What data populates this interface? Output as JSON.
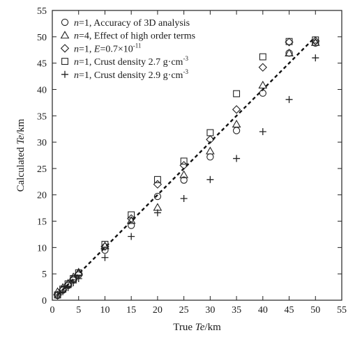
{
  "chart_data": {
    "type": "scatter",
    "xlabel": {
      "prefix": "True ",
      "var": "Te",
      "suffix": "/km"
    },
    "ylabel": {
      "prefix": "Calculated ",
      "var": "Te",
      "suffix": "/km"
    },
    "xlim": [
      0,
      55
    ],
    "ylim": [
      0,
      55
    ],
    "xticks": [
      "0",
      "5",
      "10",
      "15",
      "20",
      "25",
      "30",
      "35",
      "40",
      "45",
      "50",
      "55"
    ],
    "yticks": [
      "0",
      "5",
      "10",
      "15",
      "20",
      "25",
      "30",
      "35",
      "40",
      "45",
      "50",
      "55"
    ],
    "reference_line": {
      "style": "dashed",
      "x": [
        1,
        50
      ],
      "y": [
        1,
        50
      ]
    },
    "legend_position": "top-left",
    "series": [
      {
        "marker": "circle",
        "legend": [
          {
            "text": "n",
            "italic": true
          },
          {
            "text": "=1, Accuracy of 3D analysis"
          }
        ],
        "x": [
          1,
          2,
          3,
          4,
          5,
          10,
          15,
          20,
          25,
          30,
          35,
          40,
          45,
          50
        ],
        "y": [
          0.9,
          1.9,
          2.8,
          3.8,
          4.8,
          9.5,
          14.2,
          19.7,
          22.8,
          27.2,
          32.2,
          39.3,
          46.9,
          48.8
        ]
      },
      {
        "marker": "triangle",
        "legend": [
          {
            "text": "n",
            "italic": true
          },
          {
            "text": "=4, Effect of high order terms"
          }
        ],
        "x": [
          1,
          2,
          3,
          4,
          5,
          10,
          15,
          20,
          25,
          30,
          35,
          40,
          45,
          50
        ],
        "y": [
          1.6,
          2.4,
          3.2,
          4.4,
          5.3,
          10.3,
          15.1,
          17.6,
          23.8,
          28.3,
          33.4,
          40.8,
          46.9,
          48.9
        ]
      },
      {
        "marker": "diamond",
        "legend": [
          {
            "text": "n",
            "italic": true
          },
          {
            "text": "=1, "
          },
          {
            "text": "E",
            "italic": true
          },
          {
            "text": "=0.7×10"
          },
          {
            "text": "-11",
            "sup": true
          }
        ],
        "x": [
          1,
          2,
          3,
          4,
          5,
          10,
          15,
          20,
          25,
          30,
          35,
          40,
          45,
          50
        ],
        "y": [
          1.0,
          2.0,
          3.0,
          4.0,
          5.0,
          10.2,
          15.5,
          22.0,
          25.6,
          30.5,
          36.2,
          44.2,
          49.0,
          49.2
        ]
      },
      {
        "marker": "square",
        "legend": [
          {
            "text": "n",
            "italic": true
          },
          {
            "text": "=1, Crust density 2.7 g·cm"
          },
          {
            "text": "-3",
            "sup": true
          }
        ],
        "x": [
          1,
          2,
          3,
          4,
          5,
          10,
          15,
          20,
          25,
          30,
          35,
          40,
          45,
          50
        ],
        "y": [
          1.0,
          2.1,
          3.1,
          4.1,
          5.2,
          10.6,
          16.2,
          22.9,
          26.4,
          31.8,
          39.2,
          46.2,
          49.1,
          49.4
        ]
      },
      {
        "marker": "plus",
        "legend": [
          {
            "text": "n",
            "italic": true
          },
          {
            "text": "=1, Crust density 2.9 g·cm"
          },
          {
            "text": "-3",
            "sup": true
          }
        ],
        "x": [
          1,
          2,
          3,
          4,
          5,
          10,
          15,
          20,
          25,
          30,
          35,
          40,
          45,
          50
        ],
        "y": [
          0.8,
          1.6,
          2.4,
          3.3,
          4.1,
          8.1,
          12.1,
          16.6,
          19.3,
          22.9,
          26.9,
          32.0,
          38.1,
          46.0
        ]
      }
    ]
  }
}
